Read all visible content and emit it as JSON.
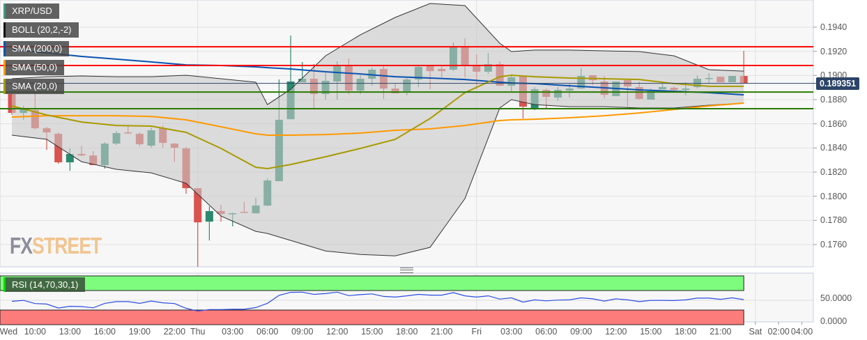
{
  "legend": {
    "symbol": {
      "label": "XRP/USD",
      "color": "#3a9b7f"
    },
    "boll": {
      "label": "BOLL (20,2,-2)",
      "color": "#111111"
    },
    "sma200": {
      "label": "SMA (200,0)",
      "color": "#0a52b0"
    },
    "sma50": {
      "label": "SMA (50,0)",
      "color": "#ff9900"
    },
    "sma20": {
      "label": "SMA (20,0)",
      "color": "#a89a00"
    },
    "rsi": {
      "label": "RSI (14,70,30,1)",
      "color": "#00dd00"
    }
  },
  "logo": {
    "part1": "FX",
    "part2": "STREET"
  },
  "current_price": "0.189351",
  "colors": {
    "up": "#2a8a6e",
    "down": "#d9534f",
    "resistance": "#ff0000",
    "support": "#2a7a00",
    "price_line": "#2c4468",
    "rsi_line": "#2a4de0",
    "rsi_overbought": "#7dfc7d",
    "rsi_oversold": "#fc7b7b"
  },
  "chart_data": {
    "type": "candlestick",
    "y_axis": {
      "range": [
        0.174,
        0.1962
      ],
      "ticks": [
        "0.1760",
        "0.1780",
        "0.1800",
        "0.1820",
        "0.1840",
        "0.1860",
        "0.1880",
        "0.1900",
        "0.1920",
        "0.1940"
      ]
    },
    "x_axis": {
      "ticks": [
        {
          "label": "Wed",
          "t": "Wed 07:00"
        },
        {
          "label": "10:00",
          "t": "Wed 10:00"
        },
        {
          "label": "13:00",
          "t": "Wed 13:00"
        },
        {
          "label": "16:00",
          "t": "Wed 16:00"
        },
        {
          "label": "19:00",
          "t": "Wed 19:00"
        },
        {
          "label": "22:00",
          "t": "Wed 22:00"
        },
        {
          "label": "Thu",
          "t": "Thu 00:00"
        },
        {
          "label": "03:00",
          "t": "Thu 03:00"
        },
        {
          "label": "06:00",
          "t": "Thu 06:00"
        },
        {
          "label": "09:00",
          "t": "Thu 09:00"
        },
        {
          "label": "12:00",
          "t": "Thu 12:00"
        },
        {
          "label": "15:00",
          "t": "Thu 15:00"
        },
        {
          "label": "18:00",
          "t": "Thu 18:00"
        },
        {
          "label": "21:00",
          "t": "Thu 21:00"
        },
        {
          "label": "Fri",
          "t": "Fri 00:00"
        },
        {
          "label": "03:00",
          "t": "Fri 03:00"
        },
        {
          "label": "06:00",
          "t": "Fri 06:00"
        },
        {
          "label": "09:00",
          "t": "Fri 09:00"
        },
        {
          "label": "12:00",
          "t": "Fri 12:00"
        },
        {
          "label": "15:00",
          "t": "Fri 15:00"
        },
        {
          "label": "18:00",
          "t": "Fri 18:00"
        },
        {
          "label": "21:00",
          "t": "Fri 21:00"
        },
        {
          "label": "Sat",
          "t": "Sat 00:00"
        },
        {
          "label": "02:00",
          "t": "Sat 02:00"
        },
        {
          "label": "04:00",
          "t": "Sat 04:00"
        }
      ]
    },
    "horizontal_lines": {
      "resistance": [
        0.19238,
        0.19083
      ],
      "support": [
        0.18863,
        0.18725
      ]
    },
    "candles": [
      {
        "t": "Wed 08:00",
        "o": 0.18846,
        "h": 0.18875,
        "l": 0.18673,
        "c": 0.1869
      },
      {
        "t": "Wed 09:00",
        "o": 0.1869,
        "h": 0.18748,
        "l": 0.18633,
        "c": 0.18731
      },
      {
        "t": "Wed 10:00",
        "o": 0.18713,
        "h": 0.18875,
        "l": 0.18552,
        "c": 0.18563
      },
      {
        "t": "Wed 11:00",
        "o": 0.18563,
        "h": 0.18575,
        "l": 0.18384,
        "c": 0.18529
      },
      {
        "t": "Wed 12:00",
        "o": 0.18517,
        "h": 0.18529,
        "l": 0.18269,
        "c": 0.18281
      },
      {
        "t": "Wed 13:00",
        "o": 0.18281,
        "h": 0.18396,
        "l": 0.18211,
        "c": 0.1835
      },
      {
        "t": "Wed 14:00",
        "o": 0.1835,
        "h": 0.18419,
        "l": 0.18333,
        "c": 0.18338
      },
      {
        "t": "Wed 15:00",
        "o": 0.18338,
        "h": 0.18373,
        "l": 0.18258,
        "c": 0.18258
      },
      {
        "t": "Wed 16:00",
        "o": 0.18258,
        "h": 0.18448,
        "l": 0.18229,
        "c": 0.18436
      },
      {
        "t": "Wed 17:00",
        "o": 0.18436,
        "h": 0.1854,
        "l": 0.18425,
        "c": 0.18523
      },
      {
        "t": "Wed 18:00",
        "o": 0.18529,
        "h": 0.18581,
        "l": 0.18517,
        "c": 0.18523
      },
      {
        "t": "Wed 19:00",
        "o": 0.18517,
        "h": 0.18529,
        "l": 0.18413,
        "c": 0.18431
      },
      {
        "t": "Wed 20:00",
        "o": 0.18419,
        "h": 0.18569,
        "l": 0.18402,
        "c": 0.18546
      },
      {
        "t": "Wed 21:00",
        "o": 0.18563,
        "h": 0.18586,
        "l": 0.18402,
        "c": 0.18442
      },
      {
        "t": "Wed 22:00",
        "o": 0.18436,
        "h": 0.18442,
        "l": 0.18286,
        "c": 0.18402
      },
      {
        "t": "Wed 23:00",
        "o": 0.18396,
        "h": 0.18408,
        "l": 0.18021,
        "c": 0.18067
      },
      {
        "t": "Thu 00:00",
        "o": 0.18067,
        "h": 0.18067,
        "l": 0.17415,
        "c": 0.17784
      },
      {
        "t": "Thu 01:00",
        "o": 0.1779,
        "h": 0.17917,
        "l": 0.17634,
        "c": 0.17877
      },
      {
        "t": "Thu 02:00",
        "o": 0.17877,
        "h": 0.17929,
        "l": 0.1779,
        "c": 0.17854
      },
      {
        "t": "Thu 03:00",
        "o": 0.17854,
        "h": 0.17865,
        "l": 0.1775,
        "c": 0.17859
      },
      {
        "t": "Thu 04:00",
        "o": 0.17871,
        "h": 0.17952,
        "l": 0.17865,
        "c": 0.17865
      },
      {
        "t": "Thu 05:00",
        "o": 0.17859,
        "h": 0.17987,
        "l": 0.17859,
        "c": 0.17923
      },
      {
        "t": "Thu 06:00",
        "o": 0.17923,
        "h": 0.18148,
        "l": 0.17917,
        "c": 0.18131
      },
      {
        "t": "Thu 07:00",
        "o": 0.18125,
        "h": 0.18967,
        "l": 0.18125,
        "c": 0.18633
      },
      {
        "t": "Thu 08:00",
        "o": 0.18638,
        "h": 0.19331,
        "l": 0.18638,
        "c": 0.1895
      },
      {
        "t": "Thu 09:00",
        "o": 0.18944,
        "h": 0.19112,
        "l": 0.18944,
        "c": 0.18973
      },
      {
        "t": "Thu 10:00",
        "o": 0.18973,
        "h": 0.19094,
        "l": 0.18731,
        "c": 0.18846
      },
      {
        "t": "Thu 11:00",
        "o": 0.18846,
        "h": 0.19019,
        "l": 0.188,
        "c": 0.18956
      },
      {
        "t": "Thu 12:00",
        "o": 0.1895,
        "h": 0.19117,
        "l": 0.188,
        "c": 0.19077
      },
      {
        "t": "Thu 13:00",
        "o": 0.19077,
        "h": 0.1914,
        "l": 0.18846,
        "c": 0.18875
      },
      {
        "t": "Thu 14:00",
        "o": 0.18875,
        "h": 0.19002,
        "l": 0.18846,
        "c": 0.18973
      },
      {
        "t": "Thu 15:00",
        "o": 0.18973,
        "h": 0.19065,
        "l": 0.18915,
        "c": 0.19048
      },
      {
        "t": "Thu 16:00",
        "o": 0.19054,
        "h": 0.19088,
        "l": 0.18806,
        "c": 0.18892
      },
      {
        "t": "Thu 17:00",
        "o": 0.18892,
        "h": 0.18933,
        "l": 0.18852,
        "c": 0.18852
      },
      {
        "t": "Thu 18:00",
        "o": 0.18869,
        "h": 0.18979,
        "l": 0.18835,
        "c": 0.18967
      },
      {
        "t": "Thu 19:00",
        "o": 0.18967,
        "h": 0.19083,
        "l": 0.18904,
        "c": 0.19071
      },
      {
        "t": "Thu 20:00",
        "o": 0.19077,
        "h": 0.19077,
        "l": 0.18886,
        "c": 0.19036
      },
      {
        "t": "Thu 21:00",
        "o": 0.19054,
        "h": 0.19077,
        "l": 0.18985,
        "c": 0.19036
      },
      {
        "t": "Thu 22:00",
        "o": 0.19048,
        "h": 0.19273,
        "l": 0.19036,
        "c": 0.19238
      },
      {
        "t": "Thu 23:00",
        "o": 0.19238,
        "h": 0.19308,
        "l": 0.18985,
        "c": 0.19088
      },
      {
        "t": "Fri 00:00",
        "o": 0.19077,
        "h": 0.19175,
        "l": 0.18886,
        "c": 0.19031
      },
      {
        "t": "Fri 01:00",
        "o": 0.19031,
        "h": 0.19187,
        "l": 0.19013,
        "c": 0.19094
      },
      {
        "t": "Fri 02:00",
        "o": 0.19094,
        "h": 0.19117,
        "l": 0.18915,
        "c": 0.18915
      },
      {
        "t": "Fri 03:00",
        "o": 0.18915,
        "h": 0.19008,
        "l": 0.18869,
        "c": 0.18985
      },
      {
        "t": "Fri 04:00",
        "o": 0.18996,
        "h": 0.18996,
        "l": 0.18644,
        "c": 0.18742
      },
      {
        "t": "Fri 05:00",
        "o": 0.18731,
        "h": 0.18904,
        "l": 0.18713,
        "c": 0.18886
      },
      {
        "t": "Fri 06:00",
        "o": 0.18881,
        "h": 0.18892,
        "l": 0.18731,
        "c": 0.18823
      },
      {
        "t": "Fri 07:00",
        "o": 0.18817,
        "h": 0.18904,
        "l": 0.18788,
        "c": 0.18881
      },
      {
        "t": "Fri 08:00",
        "o": 0.18875,
        "h": 0.18933,
        "l": 0.18817,
        "c": 0.18892
      },
      {
        "t": "Fri 09:00",
        "o": 0.18892,
        "h": 0.19065,
        "l": 0.18886,
        "c": 0.18996
      },
      {
        "t": "Fri 10:00",
        "o": 0.19002,
        "h": 0.19002,
        "l": 0.18921,
        "c": 0.18961
      },
      {
        "t": "Fri 11:00",
        "o": 0.1895,
        "h": 0.18996,
        "l": 0.18811,
        "c": 0.1884
      },
      {
        "t": "Fri 12:00",
        "o": 0.18829,
        "h": 0.1895,
        "l": 0.18829,
        "c": 0.1895
      },
      {
        "t": "Fri 13:00",
        "o": 0.18961,
        "h": 0.18961,
        "l": 0.18742,
        "c": 0.1891
      },
      {
        "t": "Fri 14:00",
        "o": 0.18904,
        "h": 0.1895,
        "l": 0.188,
        "c": 0.18806
      },
      {
        "t": "Fri 15:00",
        "o": 0.188,
        "h": 0.18892,
        "l": 0.188,
        "c": 0.18881
      },
      {
        "t": "Fri 16:00",
        "o": 0.18886,
        "h": 0.18933,
        "l": 0.18886,
        "c": 0.18904
      },
      {
        "t": "Fri 17:00",
        "o": 0.18898,
        "h": 0.1891,
        "l": 0.18875,
        "c": 0.18881
      },
      {
        "t": "Fri 18:00",
        "o": 0.18881,
        "h": 0.18944,
        "l": 0.18835,
        "c": 0.18892
      },
      {
        "t": "Fri 19:00",
        "o": 0.18904,
        "h": 0.19002,
        "l": 0.18892,
        "c": 0.18973
      },
      {
        "t": "Fri 20:00",
        "o": 0.18973,
        "h": 0.19019,
        "l": 0.18938,
        "c": 0.18979
      },
      {
        "t": "Fri 21:00",
        "o": 0.1899,
        "h": 0.1899,
        "l": 0.18944,
        "c": 0.18944
      },
      {
        "t": "Fri 22:00",
        "o": 0.18944,
        "h": 0.18996,
        "l": 0.18944,
        "c": 0.18996
      },
      {
        "t": "Fri 23:00",
        "o": 0.18996,
        "h": 0.19204,
        "l": 0.18935,
        "c": 0.18935
      }
    ],
    "indicator_times": [
      "Wed 08:00",
      "Wed 11:00",
      "Wed 14:00",
      "Wed 17:00",
      "Wed 20:00",
      "Wed 23:00",
      "Thu 02:00",
      "Thu 05:00",
      "Thu 06:00",
      "Thu 08:00",
      "Thu 11:00",
      "Thu 14:00",
      "Thu 17:00",
      "Thu 20:00",
      "Thu 23:00",
      "Fri 02:00",
      "Fri 03:00",
      "Fri 05:00",
      "Fri 08:00",
      "Fri 11:00",
      "Fri 14:00",
      "Fri 17:00",
      "Fri 20:00",
      "Fri 23:00"
    ],
    "boll_upper": [
      0.18973,
      0.1899,
      0.18996,
      0.1899,
      0.1899,
      0.19002,
      0.18973,
      0.18944,
      0.18759,
      0.18886,
      0.19163,
      0.19337,
      0.19481,
      0.19596,
      0.19579,
      0.19267,
      0.19198,
      0.1921,
      0.1921,
      0.19204,
      0.19198,
      0.19163,
      0.19048,
      0.19036
    ],
    "boll_lower": [
      0.18506,
      0.18471,
      0.18286,
      0.18223,
      0.18194,
      0.18107,
      0.17836,
      0.17709,
      0.17692,
      0.17634,
      0.17547,
      0.17518,
      0.17507,
      0.17577,
      0.17981,
      0.18731,
      0.188,
      0.18759,
      0.18742,
      0.18742,
      0.18731,
      0.18731,
      0.18754,
      0.18771
    ],
    "sma20": [
      0.18748,
      0.18673,
      0.18615,
      0.18586,
      0.18581,
      0.18529,
      0.18396,
      0.1824,
      0.18229,
      0.18263,
      0.18327,
      0.18396,
      0.18471,
      0.18644,
      0.18858,
      0.1899,
      0.19002,
      0.1899,
      0.18979,
      0.18973,
      0.18967,
      0.18933,
      0.1891,
      0.1891
    ],
    "sma50": [
      0.18656,
      0.18667,
      0.18667,
      0.18667,
      0.18661,
      0.18633,
      0.18575,
      0.18517,
      0.18506,
      0.18506,
      0.18511,
      0.18523,
      0.18546,
      0.18558,
      0.18586,
      0.18627,
      0.18633,
      0.18638,
      0.1865,
      0.18667,
      0.1869,
      0.18719,
      0.18748,
      0.18771
    ],
    "sma200": [
      0.19215,
      0.19187,
      0.19158,
      0.19135,
      0.19112,
      0.19088,
      0.19083,
      0.19071,
      0.19065,
      0.19054,
      0.19031,
      0.19013,
      0.1899,
      0.18979,
      0.18967,
      0.18944,
      0.18938,
      0.18933,
      0.18915,
      0.18898,
      0.18881,
      0.18869,
      0.18858,
      0.1884
    ],
    "rsi": {
      "y_ticks": [
        "50.0000",
        "0.0000"
      ],
      "overbought": 70,
      "oversold": 30,
      "values": [
        47.9,
        49.9,
        43.3,
        42.3,
        34.1,
        37.7,
        37.1,
        34.6,
        43.7,
        47.3,
        47.3,
        43.7,
        48.4,
        44.9,
        43.3,
        33.6,
        28.0,
        31.0,
        31.0,
        31.6,
        31.6,
        35.1,
        43.7,
        60.1,
        66.3,
        66.7,
        62.1,
        63.7,
        66.7,
        59.6,
        61.6,
        63.1,
        58.0,
        56.6,
        59.1,
        62.1,
        60.6,
        60.6,
        65.7,
        59.1,
        56.6,
        59.1,
        52.4,
        55.0,
        46.3,
        50.9,
        48.9,
        50.4,
        50.9,
        55.0,
        53.0,
        48.4,
        53.0,
        50.9,
        47.3,
        49.9,
        49.9,
        49.4,
        50.9,
        54.4,
        54.4,
        52.0,
        55.0,
        51.4
      ]
    }
  }
}
